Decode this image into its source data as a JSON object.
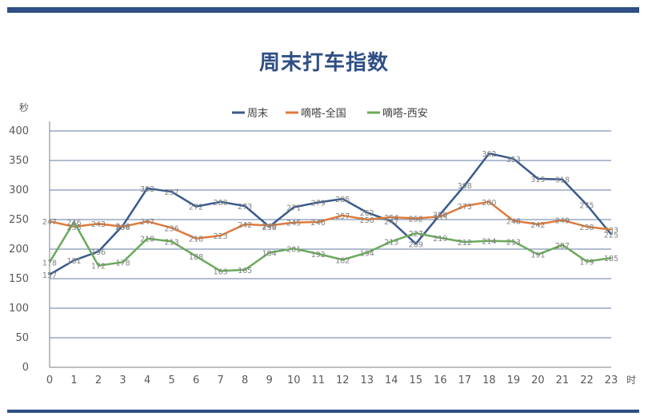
{
  "chart_data": {
    "type": "line",
    "title": "周末打车指数",
    "ylabel": "秒",
    "xlabel": "时",
    "ylim": [
      0,
      400
    ],
    "yticks": [
      0,
      50,
      100,
      150,
      200,
      250,
      300,
      350,
      400
    ],
    "grid": true,
    "legend_position": "top",
    "x": [
      0,
      1,
      2,
      3,
      4,
      5,
      6,
      7,
      8,
      9,
      10,
      11,
      12,
      13,
      14,
      15,
      16,
      17,
      18,
      19,
      20,
      21,
      22,
      23
    ],
    "series": [
      {
        "name": "周末",
        "color": "#3a5a8c",
        "values": [
          157,
          181,
          196,
          240,
          303,
          297,
          272,
          280,
          273,
          238,
          271,
          279,
          285,
          262,
          247,
          209,
          259,
          308,
          362,
          353,
          319,
          318,
          275,
          225
        ]
      },
      {
        "name": "嘀嗒-全国",
        "color": "#e07b39",
        "values": [
          247,
          238,
          243,
          238,
          247,
          236,
          218,
          223,
          242,
          240,
          245,
          246,
          257,
          250,
          254,
          252,
          255,
          273,
          280,
          248,
          242,
          249,
          238,
          233
        ]
      },
      {
        "name": "嘀嗒-西安",
        "color": "#6aaa5a",
        "values": [
          178,
          246,
          172,
          178,
          218,
          213,
          188,
          163,
          165,
          194,
          201,
          192,
          182,
          194,
          213,
          227,
          219,
          212,
          214,
          213,
          191,
          207,
          179,
          185
        ]
      }
    ]
  }
}
